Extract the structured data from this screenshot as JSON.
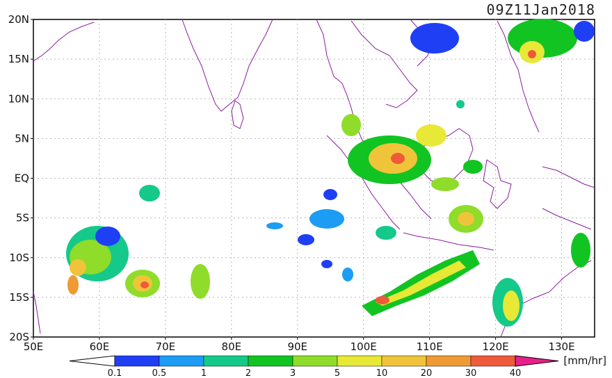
{
  "title": "09Z11Jan2018",
  "map": {
    "lon_range": [
      50,
      135
    ],
    "lat_range": [
      -20,
      20
    ],
    "lat_labels": [
      "20N",
      "15N",
      "10N",
      "5N",
      "EQ",
      "5S",
      "10S",
      "15S",
      "20S"
    ],
    "lon_labels": [
      "50E",
      "60E",
      "70E",
      "80E",
      "90E",
      "100E",
      "110E",
      "120E",
      "130E"
    ]
  },
  "colorbar": {
    "unit": "[mm/hr]",
    "labels": [
      "0.1",
      "0.5",
      "1",
      "2",
      "3",
      "5",
      "10",
      "20",
      "30",
      "40"
    ],
    "colors": [
      "#1f3ff5",
      "#1c9cf3",
      "#14c98a",
      "#12c422",
      "#8fdc2a",
      "#e8e836",
      "#f0c43a",
      "#ef9a34",
      "#ef5a3a",
      "#e8218a"
    ]
  },
  "colors": {
    "coastline": "#8b1a9e",
    "grid": "#b5b5b5"
  }
}
